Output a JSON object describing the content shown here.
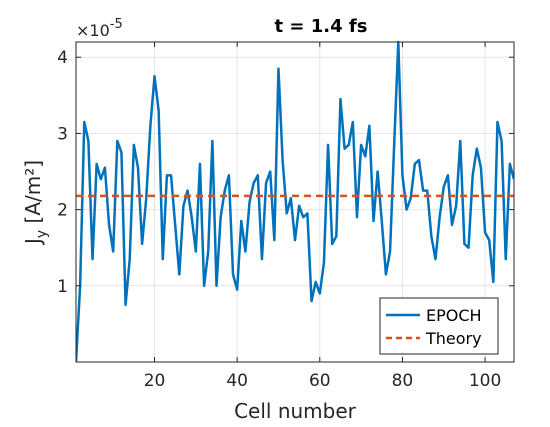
{
  "chart_data": {
    "type": "line",
    "title": "t = 1.4 fs",
    "xlabel": "Cell number",
    "ylabel": "J_y [A/m²]",
    "ylabel_main": "J",
    "ylabel_sub": "y",
    "ylabel_unit": " [A/m²]",
    "y_multiplier_base": "×10",
    "y_multiplier_exp": "-5",
    "xlim": [
      1,
      107
    ],
    "ylim": [
      0,
      4.2
    ],
    "x_ticks": [
      20,
      40,
      60,
      80,
      100
    ],
    "x_tick_labels": [
      "20",
      "40",
      "60",
      "80",
      "100"
    ],
    "y_ticks": [
      1,
      2,
      3,
      4
    ],
    "y_tick_labels": [
      "1",
      "2",
      "3",
      "4"
    ],
    "grid": true,
    "legend_position": "bottom-right",
    "series": [
      {
        "name": "EPOCH",
        "color": "#0072BD",
        "style": "solid",
        "x": [
          1,
          2,
          3,
          4,
          5,
          6,
          7,
          8,
          9,
          10,
          11,
          12,
          13,
          14,
          15,
          16,
          17,
          18,
          19,
          20,
          21,
          22,
          23,
          24,
          25,
          26,
          27,
          28,
          29,
          30,
          31,
          32,
          33,
          34,
          35,
          36,
          37,
          38,
          39,
          40,
          41,
          42,
          43,
          44,
          45,
          46,
          47,
          48,
          49,
          50,
          51,
          52,
          53,
          54,
          55,
          56,
          57,
          58,
          59,
          60,
          61,
          62,
          63,
          64,
          65,
          66,
          67,
          68,
          69,
          70,
          71,
          72,
          73,
          74,
          75,
          76,
          77,
          78,
          79,
          80,
          81,
          82,
          83,
          84,
          85,
          86,
          87,
          88,
          89,
          90,
          91,
          92,
          93,
          94,
          95,
          96,
          97,
          98,
          99,
          100,
          101,
          102,
          103,
          104,
          105,
          106,
          107
        ],
        "y": [
          0.0,
          1.0,
          3.15,
          2.9,
          1.35,
          2.6,
          2.4,
          2.55,
          1.8,
          1.45,
          2.9,
          2.75,
          0.75,
          1.35,
          2.85,
          2.55,
          1.55,
          2.15,
          3.1,
          3.75,
          3.3,
          1.35,
          2.45,
          2.45,
          1.8,
          1.15,
          2.05,
          2.25,
          1.9,
          1.45,
          2.6,
          1.0,
          1.45,
          2.9,
          1.0,
          1.9,
          2.25,
          2.45,
          1.15,
          0.95,
          1.85,
          1.45,
          2.1,
          2.35,
          2.45,
          1.35,
          2.35,
          2.5,
          1.6,
          3.85,
          2.65,
          1.95,
          2.15,
          1.6,
          2.05,
          1.9,
          1.95,
          0.8,
          1.05,
          0.9,
          1.3,
          2.85,
          1.55,
          1.65,
          3.45,
          2.8,
          2.85,
          3.15,
          1.9,
          2.85,
          2.7,
          3.1,
          1.85,
          2.5,
          1.85,
          1.15,
          1.45,
          2.85,
          4.2,
          2.45,
          2.0,
          2.15,
          2.6,
          2.65,
          2.25,
          2.25,
          1.65,
          1.35,
          1.9,
          2.3,
          2.45,
          1.8,
          2.05,
          2.9,
          1.55,
          1.5,
          2.45,
          2.8,
          2.55,
          1.7,
          1.6,
          1.05,
          3.15,
          2.9,
          1.35,
          2.6,
          2.4
        ]
      },
      {
        "name": "Theory",
        "color": "#D95319",
        "style": "dashed",
        "x": [
          1,
          107
        ],
        "y": [
          2.18,
          2.18
        ]
      }
    ]
  }
}
